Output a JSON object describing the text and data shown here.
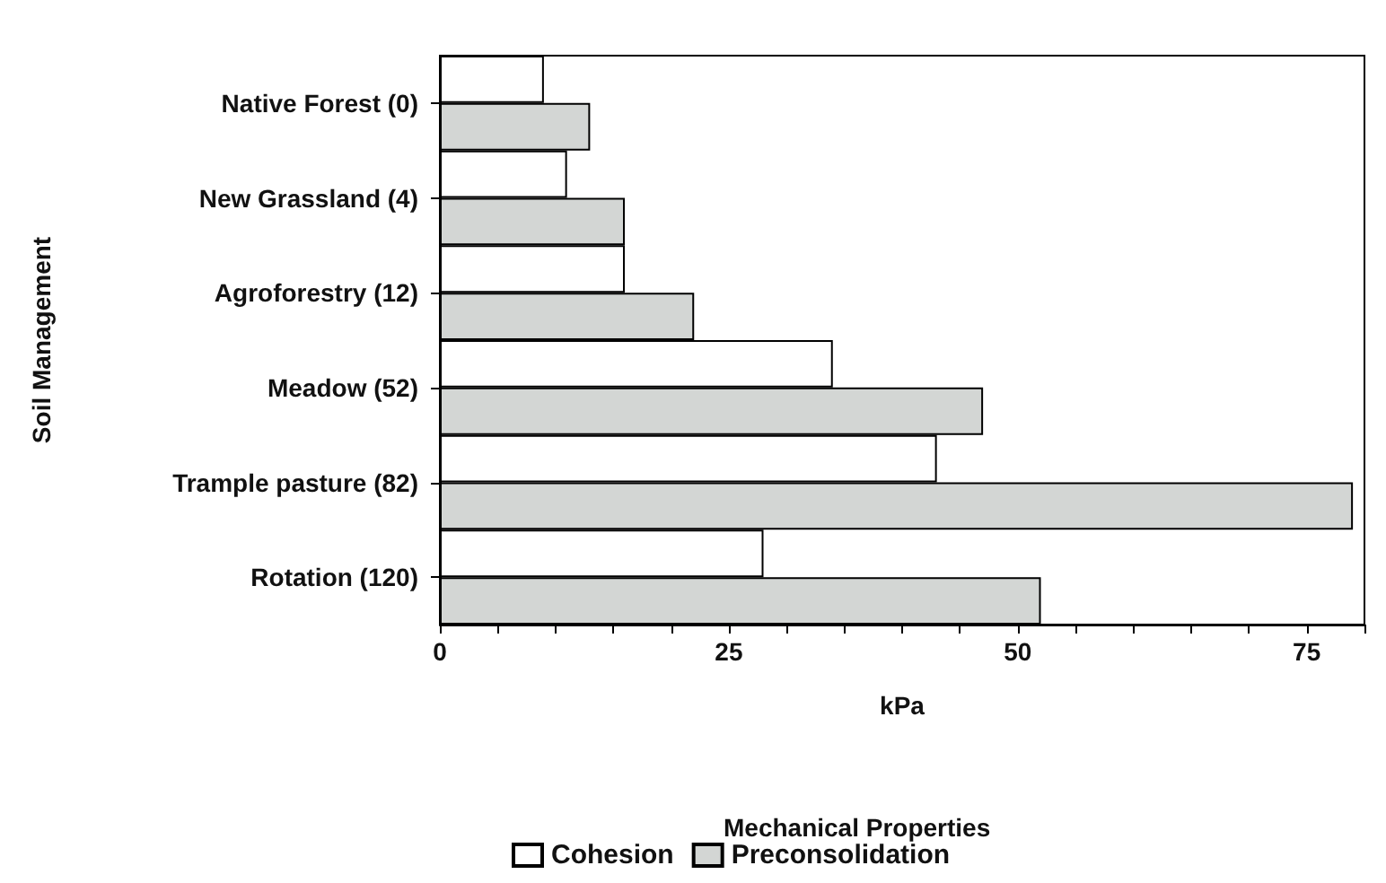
{
  "chart_data": {
    "type": "bar",
    "orientation": "horizontal",
    "ylabel": "Soil Management",
    "xlabel": "kPa",
    "legend_title": "Mechanical Properties",
    "legend": "bottom",
    "grid": false,
    "categories": [
      "Native Forest (0)",
      "New Grassland (4)",
      "Agroforestry (12)",
      "Meadow (52)",
      "Trample pasture (82)",
      "Rotation (120)"
    ],
    "series": [
      {
        "name": "Cohesion",
        "color": "#ffffff",
        "values": [
          9,
          11,
          16,
          34,
          43,
          28
        ]
      },
      {
        "name": "Preconsolidation",
        "color": "#d3d6d4",
        "values": [
          13,
          16,
          22,
          47,
          79,
          52
        ]
      }
    ],
    "xlim": [
      0,
      80
    ],
    "xticks": [
      0,
      {
        "value": 5,
        "label": null
      },
      {
        "value": 10,
        "label": null
      },
      {
        "value": 15,
        "label": null
      },
      {
        "value": 20,
        "label": null
      },
      25,
      {
        "value": 30,
        "label": null
      },
      {
        "value": 35,
        "label": null
      },
      {
        "value": 40,
        "label": null
      },
      {
        "value": 45,
        "label": null
      },
      50,
      {
        "value": 55,
        "label": null
      },
      {
        "value": 60,
        "label": null
      },
      {
        "value": 65,
        "label": null
      },
      {
        "value": 70,
        "label": null
      },
      75,
      {
        "value": 80,
        "label": null
      }
    ]
  }
}
